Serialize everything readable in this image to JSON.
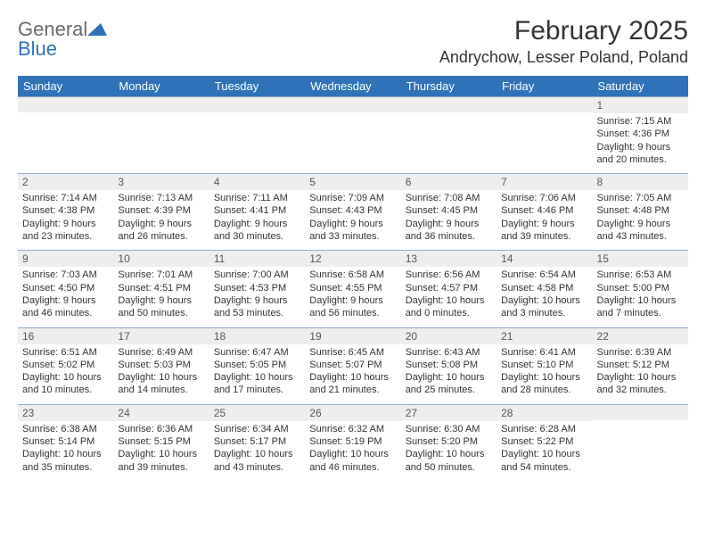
{
  "logo": {
    "general": "General",
    "blue": "Blue"
  },
  "title": "February 2025",
  "location": "Andrychow, Lesser Poland, Poland",
  "colors": {
    "header_bg": "#2f72b8",
    "header_text": "#ffffff",
    "daynum_bg": "#eeeeee",
    "border": "#8faac4",
    "text": "#333333"
  },
  "weekdays": [
    "Sunday",
    "Monday",
    "Tuesday",
    "Wednesday",
    "Thursday",
    "Friday",
    "Saturday"
  ],
  "weeks": [
    [
      {
        "num": "",
        "lines": []
      },
      {
        "num": "",
        "lines": []
      },
      {
        "num": "",
        "lines": []
      },
      {
        "num": "",
        "lines": []
      },
      {
        "num": "",
        "lines": []
      },
      {
        "num": "",
        "lines": []
      },
      {
        "num": "1",
        "lines": [
          "Sunrise: 7:15 AM",
          "Sunset: 4:36 PM",
          "Daylight: 9 hours and 20 minutes."
        ]
      }
    ],
    [
      {
        "num": "2",
        "lines": [
          "Sunrise: 7:14 AM",
          "Sunset: 4:38 PM",
          "Daylight: 9 hours and 23 minutes."
        ]
      },
      {
        "num": "3",
        "lines": [
          "Sunrise: 7:13 AM",
          "Sunset: 4:39 PM",
          "Daylight: 9 hours and 26 minutes."
        ]
      },
      {
        "num": "4",
        "lines": [
          "Sunrise: 7:11 AM",
          "Sunset: 4:41 PM",
          "Daylight: 9 hours and 30 minutes."
        ]
      },
      {
        "num": "5",
        "lines": [
          "Sunrise: 7:09 AM",
          "Sunset: 4:43 PM",
          "Daylight: 9 hours and 33 minutes."
        ]
      },
      {
        "num": "6",
        "lines": [
          "Sunrise: 7:08 AM",
          "Sunset: 4:45 PM",
          "Daylight: 9 hours and 36 minutes."
        ]
      },
      {
        "num": "7",
        "lines": [
          "Sunrise: 7:06 AM",
          "Sunset: 4:46 PM",
          "Daylight: 9 hours and 39 minutes."
        ]
      },
      {
        "num": "8",
        "lines": [
          "Sunrise: 7:05 AM",
          "Sunset: 4:48 PM",
          "Daylight: 9 hours and 43 minutes."
        ]
      }
    ],
    [
      {
        "num": "9",
        "lines": [
          "Sunrise: 7:03 AM",
          "Sunset: 4:50 PM",
          "Daylight: 9 hours and 46 minutes."
        ]
      },
      {
        "num": "10",
        "lines": [
          "Sunrise: 7:01 AM",
          "Sunset: 4:51 PM",
          "Daylight: 9 hours and 50 minutes."
        ]
      },
      {
        "num": "11",
        "lines": [
          "Sunrise: 7:00 AM",
          "Sunset: 4:53 PM",
          "Daylight: 9 hours and 53 minutes."
        ]
      },
      {
        "num": "12",
        "lines": [
          "Sunrise: 6:58 AM",
          "Sunset: 4:55 PM",
          "Daylight: 9 hours and 56 minutes."
        ]
      },
      {
        "num": "13",
        "lines": [
          "Sunrise: 6:56 AM",
          "Sunset: 4:57 PM",
          "Daylight: 10 hours and 0 minutes."
        ]
      },
      {
        "num": "14",
        "lines": [
          "Sunrise: 6:54 AM",
          "Sunset: 4:58 PM",
          "Daylight: 10 hours and 3 minutes."
        ]
      },
      {
        "num": "15",
        "lines": [
          "Sunrise: 6:53 AM",
          "Sunset: 5:00 PM",
          "Daylight: 10 hours and 7 minutes."
        ]
      }
    ],
    [
      {
        "num": "16",
        "lines": [
          "Sunrise: 6:51 AM",
          "Sunset: 5:02 PM",
          "Daylight: 10 hours and 10 minutes."
        ]
      },
      {
        "num": "17",
        "lines": [
          "Sunrise: 6:49 AM",
          "Sunset: 5:03 PM",
          "Daylight: 10 hours and 14 minutes."
        ]
      },
      {
        "num": "18",
        "lines": [
          "Sunrise: 6:47 AM",
          "Sunset: 5:05 PM",
          "Daylight: 10 hours and 17 minutes."
        ]
      },
      {
        "num": "19",
        "lines": [
          "Sunrise: 6:45 AM",
          "Sunset: 5:07 PM",
          "Daylight: 10 hours and 21 minutes."
        ]
      },
      {
        "num": "20",
        "lines": [
          "Sunrise: 6:43 AM",
          "Sunset: 5:08 PM",
          "Daylight: 10 hours and 25 minutes."
        ]
      },
      {
        "num": "21",
        "lines": [
          "Sunrise: 6:41 AM",
          "Sunset: 5:10 PM",
          "Daylight: 10 hours and 28 minutes."
        ]
      },
      {
        "num": "22",
        "lines": [
          "Sunrise: 6:39 AM",
          "Sunset: 5:12 PM",
          "Daylight: 10 hours and 32 minutes."
        ]
      }
    ],
    [
      {
        "num": "23",
        "lines": [
          "Sunrise: 6:38 AM",
          "Sunset: 5:14 PM",
          "Daylight: 10 hours and 35 minutes."
        ]
      },
      {
        "num": "24",
        "lines": [
          "Sunrise: 6:36 AM",
          "Sunset: 5:15 PM",
          "Daylight: 10 hours and 39 minutes."
        ]
      },
      {
        "num": "25",
        "lines": [
          "Sunrise: 6:34 AM",
          "Sunset: 5:17 PM",
          "Daylight: 10 hours and 43 minutes."
        ]
      },
      {
        "num": "26",
        "lines": [
          "Sunrise: 6:32 AM",
          "Sunset: 5:19 PM",
          "Daylight: 10 hours and 46 minutes."
        ]
      },
      {
        "num": "27",
        "lines": [
          "Sunrise: 6:30 AM",
          "Sunset: 5:20 PM",
          "Daylight: 10 hours and 50 minutes."
        ]
      },
      {
        "num": "28",
        "lines": [
          "Sunrise: 6:28 AM",
          "Sunset: 5:22 PM",
          "Daylight: 10 hours and 54 minutes."
        ]
      },
      {
        "num": "",
        "lines": []
      }
    ]
  ]
}
